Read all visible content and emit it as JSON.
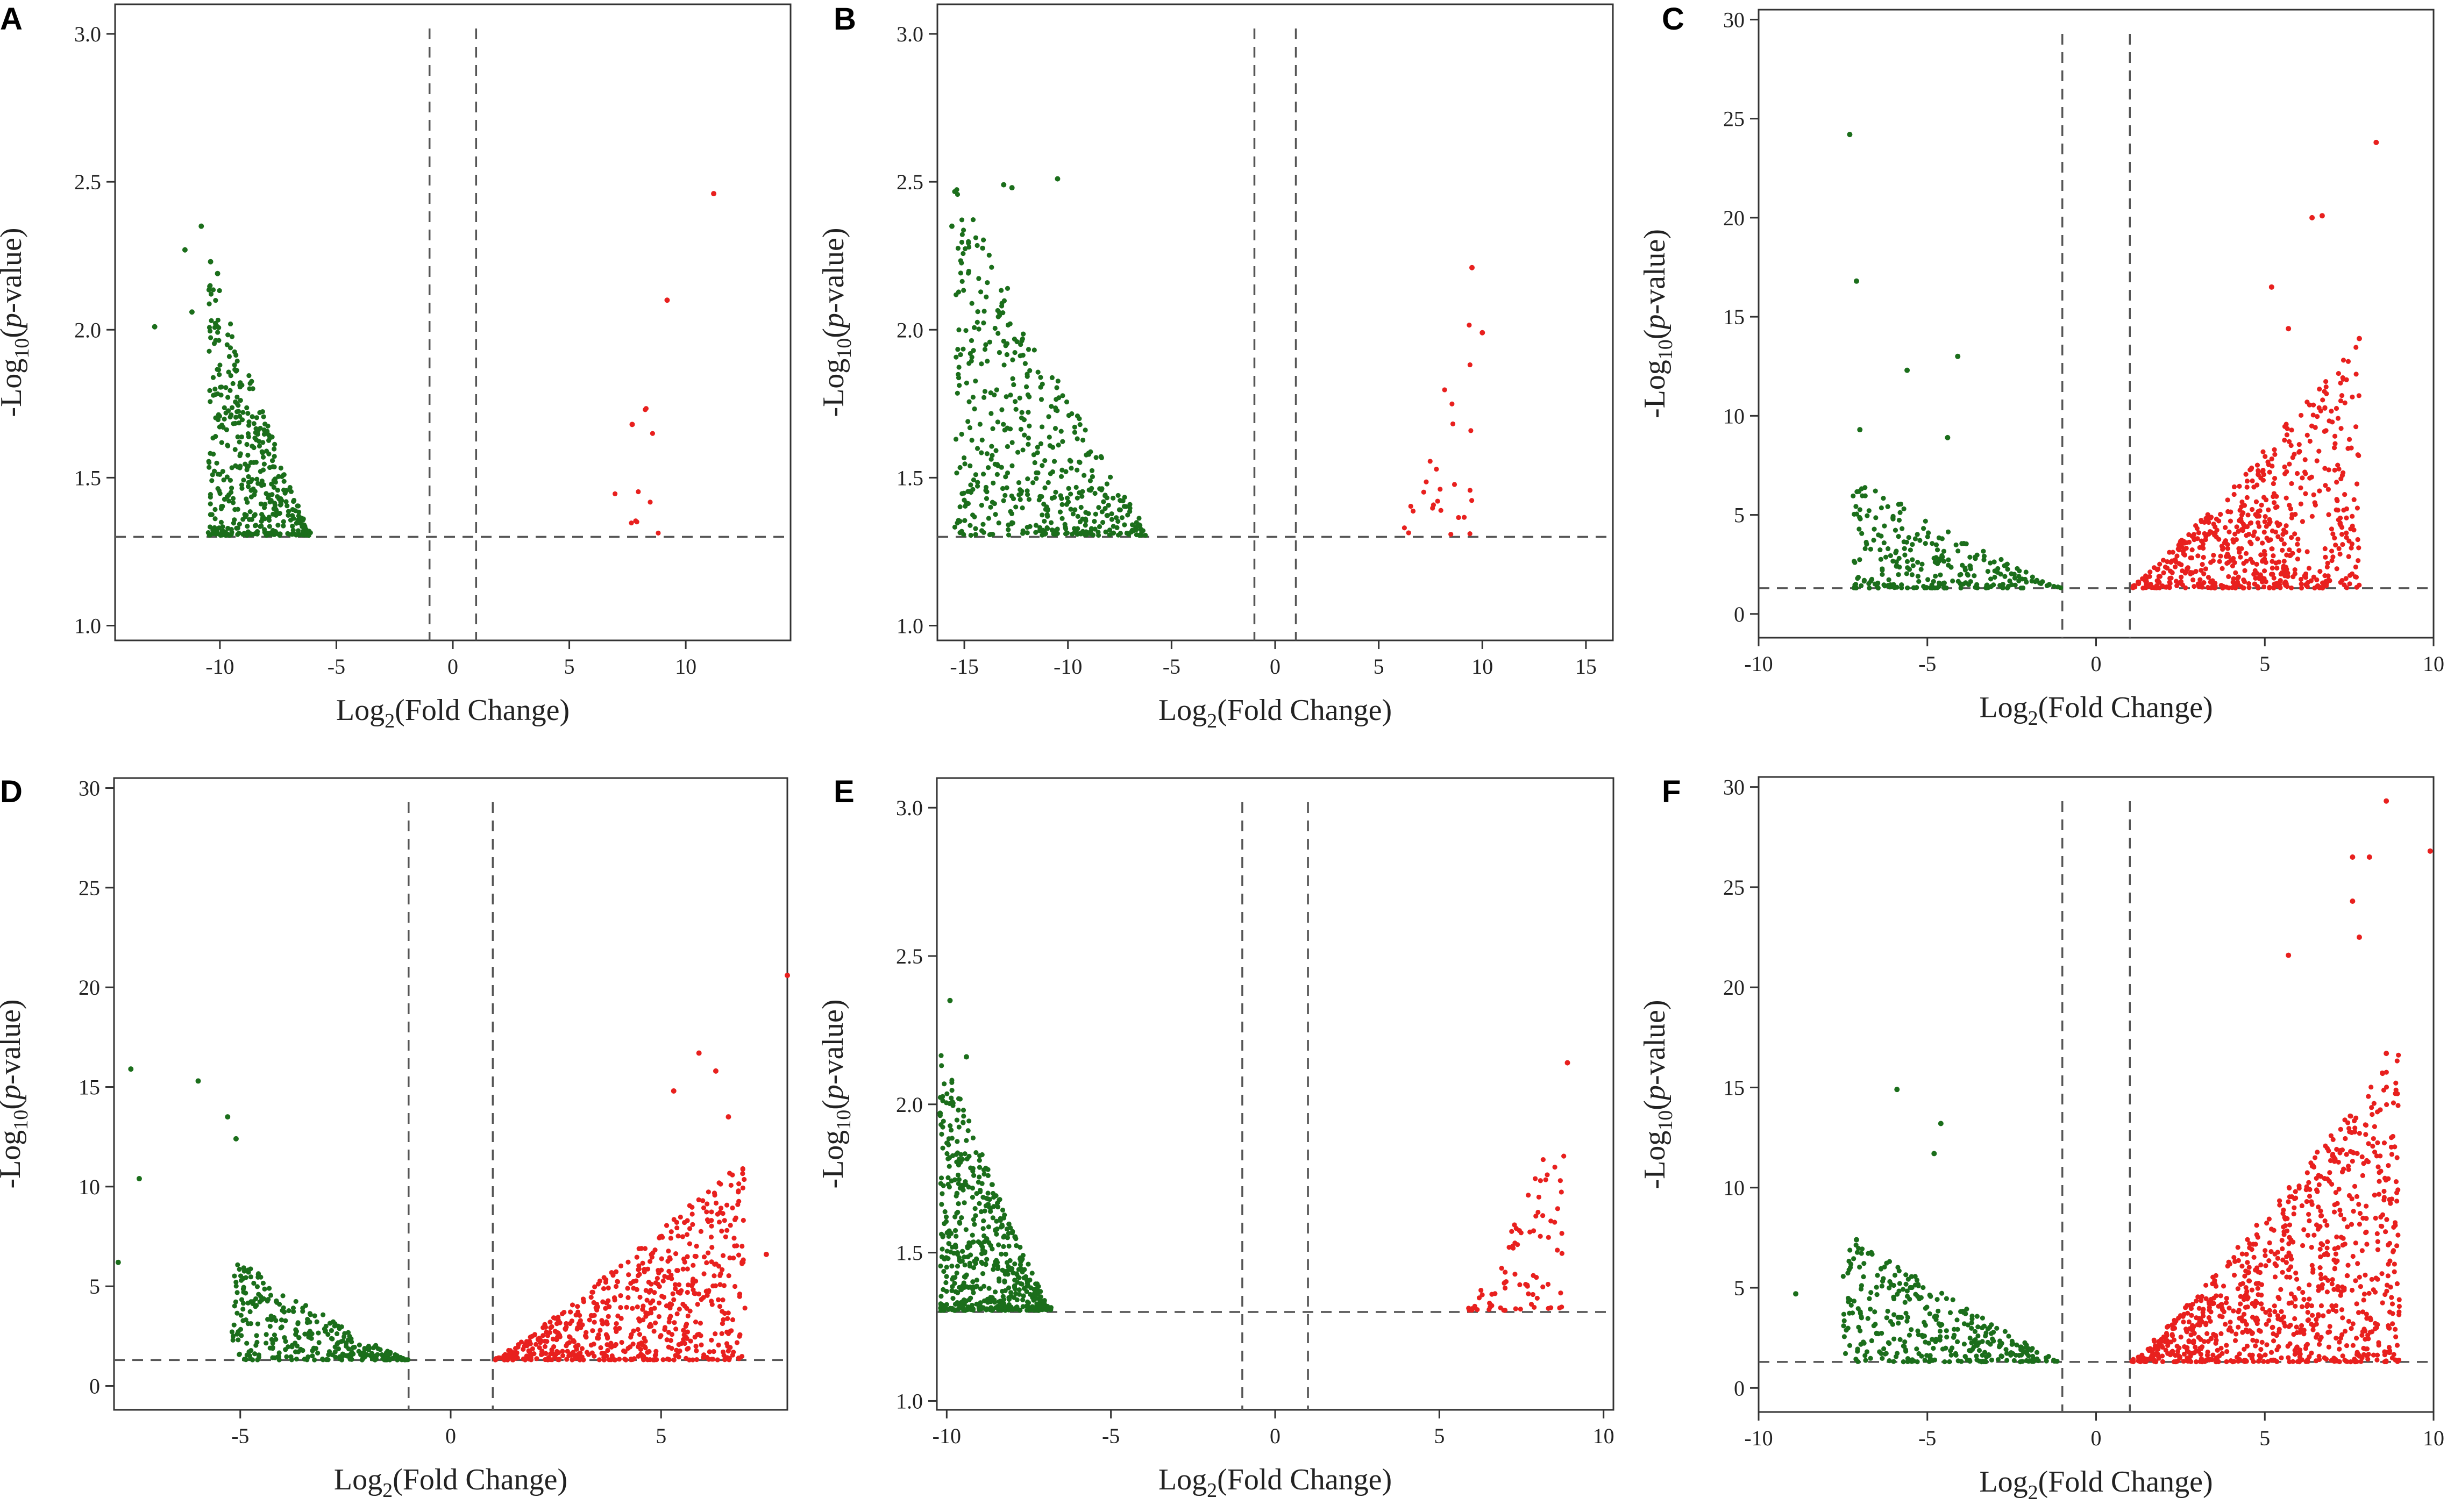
{
  "figure": {
    "colors": {
      "down": "#1b6e1b",
      "up": "#e8201e",
      "cutoff": "#555555",
      "axis": "#333333"
    },
    "labels": {
      "ylabel_prefix": "-Log",
      "ylabel_sub": "10",
      "ylabel_open": "(",
      "ylabel_p": "p",
      "ylabel_suffix": "-value)",
      "xlabel_prefix": "Log",
      "xlabel_sub": "2",
      "xlabel_suffix": "(Fold Change)"
    }
  },
  "chart_data": [
    {
      "panel": "A",
      "type": "scatter",
      "xlim": [
        -14.5,
        14.5
      ],
      "ylim": [
        0.95,
        3.1
      ],
      "xticks": [
        -10,
        -5,
        0,
        5,
        10
      ],
      "xtick_labels": [
        "-10",
        "-5",
        "0",
        "5",
        "10"
      ],
      "yticks": [
        1.0,
        1.5,
        2.0,
        2.5,
        3.0
      ],
      "ytick_labels": [
        "1.0",
        "1.5",
        "2.0",
        "2.5",
        "3.0"
      ],
      "fc_cutoff": [
        -1,
        1
      ],
      "p_cutoff": 1.3,
      "down_shape": {
        "xmin": -10.5,
        "xmax": -6.0,
        "ytop": 2.25,
        "n": 420
      },
      "up_shape": {
        "xmin": 6.3,
        "xmax": 9.3,
        "ytop": 2.1,
        "n": 10
      },
      "down_outliers": [
        [
          -10.8,
          2.35
        ],
        [
          -11.5,
          2.27
        ],
        [
          -12.8,
          2.01
        ],
        [
          -11.2,
          2.06
        ],
        [
          -10.4,
          2.23
        ],
        [
          -10.1,
          2.19
        ]
      ],
      "up_outliers": [
        [
          11.2,
          2.46
        ],
        [
          9.2,
          2.1
        ],
        [
          7.7,
          1.68
        ]
      ]
    },
    {
      "panel": "B",
      "type": "scatter",
      "xlim": [
        -16.3,
        16.3
      ],
      "ylim": [
        0.95,
        3.1
      ],
      "xticks": [
        -15,
        -10,
        -5,
        0,
        5,
        10,
        15
      ],
      "xtick_labels": [
        "-15",
        "-10",
        "-5",
        "0",
        "5",
        "10",
        "15"
      ],
      "yticks": [
        1.0,
        1.5,
        2.0,
        2.5,
        3.0
      ],
      "ytick_labels": [
        "1.0",
        "1.5",
        "2.0",
        "2.5",
        "3.0"
      ],
      "fc_cutoff": [
        -1,
        1
      ],
      "p_cutoff": 1.3,
      "down_shape": {
        "xmin": -15.5,
        "xmax": -5.9,
        "ytop": 2.5,
        "n": 480
      },
      "up_shape": {
        "xmin": 6.0,
        "xmax": 9.5,
        "ytop": 2.2,
        "n": 26
      },
      "down_outliers": [
        [
          -13.1,
          2.49
        ],
        [
          -12.7,
          2.48
        ],
        [
          -15.6,
          2.35
        ],
        [
          -10.5,
          2.51
        ]
      ],
      "up_outliers": [
        [
          9.5,
          2.21
        ],
        [
          10.0,
          1.99
        ]
      ]
    },
    {
      "panel": "C",
      "type": "scatter",
      "xlim": [
        -10.0,
        10.0
      ],
      "ylim": [
        -1.2,
        30.5
      ],
      "xticks": [
        -10,
        -5,
        0,
        5,
        10
      ],
      "xtick_labels": [
        "-10",
        "-5",
        "0",
        "5",
        "10"
      ],
      "yticks": [
        0,
        5,
        10,
        15,
        20,
        25,
        30
      ],
      "ytick_labels": [
        "0",
        "5",
        "10",
        "15",
        "20",
        "25",
        "30"
      ],
      "fc_cutoff": [
        -1,
        1
      ],
      "p_cutoff": 1.3,
      "down_shape": {
        "xmin": -7.2,
        "xmax": -1.0,
        "ytop": 7.0,
        "n": 260
      },
      "up_shape": {
        "xmin": 1.0,
        "xmax": 7.8,
        "ytop": 14.0,
        "n": 620
      },
      "down_outliers": [
        [
          -7.3,
          24.2
        ],
        [
          -7.1,
          16.8
        ],
        [
          -4.1,
          13.0
        ],
        [
          -5.6,
          12.3
        ],
        [
          -7.0,
          9.3
        ],
        [
          -4.4,
          8.9
        ]
      ],
      "up_outliers": [
        [
          8.3,
          23.8
        ],
        [
          6.7,
          20.1
        ],
        [
          6.4,
          20.0
        ],
        [
          5.2,
          16.5
        ],
        [
          7.8,
          13.9
        ],
        [
          5.7,
          14.4
        ]
      ]
    },
    {
      "panel": "D",
      "type": "scatter",
      "xlim": [
        -8.0,
        8.0
      ],
      "ylim": [
        -1.2,
        30.5
      ],
      "xticks": [
        -5,
        0,
        5
      ],
      "xtick_labels": [
        "-5",
        "0",
        "5"
      ],
      "yticks": [
        0,
        5,
        10,
        15,
        20,
        25,
        30
      ],
      "ytick_labels": [
        "0",
        "5",
        "10",
        "15",
        "20",
        "25",
        "30"
      ],
      "fc_cutoff": [
        -1,
        1
      ],
      "p_cutoff": 1.3,
      "down_shape": {
        "xmin": -5.2,
        "xmax": -1.0,
        "ytop": 6.5,
        "n": 300
      },
      "up_shape": {
        "xmin": 1.0,
        "xmax": 7.0,
        "ytop": 11.5,
        "n": 640
      },
      "down_outliers": [
        [
          -7.6,
          15.9
        ],
        [
          -6.0,
          15.3
        ],
        [
          -5.3,
          13.5
        ],
        [
          -5.1,
          12.4
        ],
        [
          -7.4,
          10.4
        ],
        [
          -7.9,
          6.2
        ]
      ],
      "up_outliers": [
        [
          8.0,
          20.6
        ],
        [
          5.9,
          16.7
        ],
        [
          6.3,
          15.8
        ],
        [
          5.3,
          14.8
        ],
        [
          6.6,
          13.5
        ],
        [
          7.5,
          6.6
        ]
      ]
    },
    {
      "panel": "E",
      "type": "scatter",
      "xlim": [
        -10.3,
        10.3
      ],
      "ylim": [
        0.97,
        3.1
      ],
      "xticks": [
        -10,
        -5,
        0,
        5,
        10
      ],
      "xtick_labels": [
        "-10",
        "-5",
        "0",
        "5",
        "10"
      ],
      "yticks": [
        1.0,
        1.5,
        2.0,
        2.5,
        3.0
      ],
      "ytick_labels": [
        "1.0",
        "1.5",
        "2.0",
        "2.5",
        "3.0"
      ],
      "fc_cutoff": [
        -1,
        1
      ],
      "p_cutoff": 1.3,
      "down_shape": {
        "xmin": -10.2,
        "xmax": -6.8,
        "ytop": 2.2,
        "n": 560
      },
      "up_shape": {
        "xmin": 5.8,
        "xmax": 8.8,
        "ytop": 1.97,
        "n": 80
      },
      "down_outliers": [
        [
          -9.9,
          2.35
        ],
        [
          -10.2,
          1.97
        ],
        [
          -9.4,
          2.16
        ]
      ],
      "up_outliers": [
        [
          8.9,
          2.14
        ]
      ]
    },
    {
      "panel": "F",
      "type": "scatter",
      "xlim": [
        -10.0,
        10.0
      ],
      "ylim": [
        -1.2,
        30.5
      ],
      "xticks": [
        -10,
        -5,
        0,
        5,
        10
      ],
      "xtick_labels": [
        "-10",
        "-5",
        "0",
        "5",
        "10"
      ],
      "yticks": [
        0,
        5,
        10,
        15,
        20,
        25,
        30
      ],
      "ytick_labels": [
        "0",
        "5",
        "10",
        "15",
        "20",
        "25",
        "30"
      ],
      "fc_cutoff": [
        -1,
        1
      ],
      "p_cutoff": 1.3,
      "down_shape": {
        "xmin": -7.5,
        "xmax": -1.0,
        "ytop": 8.0,
        "n": 340
      },
      "up_shape": {
        "xmin": 1.0,
        "xmax": 9.0,
        "ytop": 17.0,
        "n": 900
      },
      "down_outliers": [
        [
          -5.9,
          14.9
        ],
        [
          -4.6,
          13.2
        ],
        [
          -4.8,
          11.7
        ],
        [
          -8.9,
          4.7
        ],
        [
          -7.1,
          7.4
        ]
      ],
      "up_outliers": [
        [
          8.6,
          29.3
        ],
        [
          7.6,
          26.5
        ],
        [
          8.1,
          26.5
        ],
        [
          9.9,
          26.8
        ],
        [
          7.6,
          24.3
        ],
        [
          7.8,
          22.5
        ],
        [
          5.7,
          21.6
        ],
        [
          8.6,
          16.7
        ],
        [
          8.7,
          9.4
        ]
      ]
    }
  ]
}
